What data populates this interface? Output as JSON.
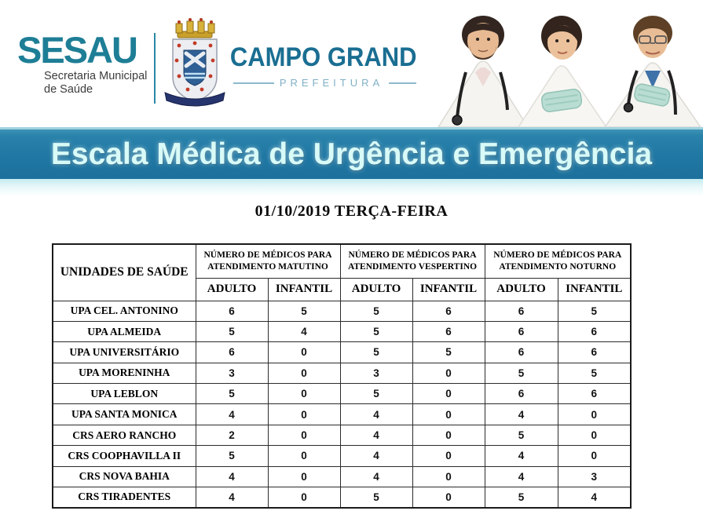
{
  "header": {
    "sesau_logo": "SESAU",
    "sesau_subtitle_line1": "Secretaria Municipal",
    "sesau_subtitle_line2": "de Saúde",
    "city_name": "CAMPO GRANDE",
    "city_subtitle": "PREFEITURA",
    "crest_icon": "campo-grande-coat-of-arms",
    "photo": "three-doctors-photo"
  },
  "banner": {
    "title": "Escala Médica de Urgência e Emergência"
  },
  "date_line": "01/10/2019 TERÇA-FEIRA",
  "table": {
    "unit_column_header": "UNIDADES DE SAÚDE",
    "group_headers": [
      "NÚMERO DE MÉDICOS PARA ATENDIMENTO MATUTINO",
      "NÚMERO DE MÉDICOS PARA ATENDIMENTO VESPERTINO",
      "NÚMERO DE MÉDICOS PARA ATENDIMENTO NOTURNO"
    ],
    "sub_headers": [
      "ADULTO",
      "INFANTIL"
    ],
    "rows": [
      {
        "unit": "UPA CEL. ANTONINO",
        "values": [
          6,
          5,
          5,
          6,
          6,
          5
        ]
      },
      {
        "unit": "UPA ALMEIDA",
        "values": [
          5,
          4,
          5,
          6,
          6,
          6
        ]
      },
      {
        "unit": "UPA UNIVERSITÁRIO",
        "values": [
          6,
          0,
          5,
          5,
          6,
          6
        ]
      },
      {
        "unit": "UPA MORENINHA",
        "values": [
          3,
          0,
          3,
          0,
          5,
          5
        ]
      },
      {
        "unit": "UPA LEBLON",
        "values": [
          5,
          0,
          5,
          0,
          6,
          6
        ]
      },
      {
        "unit": "UPA SANTA MONICA",
        "values": [
          4,
          0,
          4,
          0,
          4,
          0
        ]
      },
      {
        "unit": "CRS AERO RANCHO",
        "values": [
          2,
          0,
          4,
          0,
          5,
          0
        ]
      },
      {
        "unit": "CRS COOPHAVILLA II",
        "values": [
          5,
          0,
          4,
          0,
          4,
          0
        ]
      },
      {
        "unit": "CRS NOVA BAHIA",
        "values": [
          4,
          0,
          4,
          0,
          4,
          3
        ]
      },
      {
        "unit": "CRS TIRADENTES",
        "values": [
          4,
          0,
          5,
          0,
          5,
          4
        ]
      }
    ]
  },
  "colors": {
    "sesau_teal": "#1e7e96",
    "city_name_blue": "#1a6e92",
    "prefeitura_light_blue": "#7fb0c6",
    "banner_blue": "#1f77a3",
    "banner_text": "#d8fbf8",
    "table_border": "#1a1a1a"
  }
}
